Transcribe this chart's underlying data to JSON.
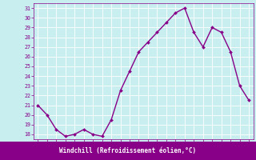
{
  "x": [
    0,
    1,
    2,
    3,
    4,
    5,
    6,
    7,
    8,
    9,
    10,
    11,
    12,
    13,
    14,
    15,
    16,
    17,
    18,
    19,
    20,
    21,
    22,
    23
  ],
  "y": [
    21,
    20,
    18.5,
    17.8,
    18,
    18.5,
    18,
    17.8,
    19.5,
    22.5,
    24.5,
    26.5,
    27.5,
    28.5,
    29.5,
    30.5,
    31,
    28.5,
    27,
    29,
    28.5,
    26.5,
    23,
    21.5
  ],
  "xlabel": "Windchill (Refroidissement éolien,°C)",
  "xlim": [
    -0.5,
    23.5
  ],
  "ylim": [
    17.5,
    31.5
  ],
  "yticks": [
    18,
    19,
    20,
    21,
    22,
    23,
    24,
    25,
    26,
    27,
    28,
    29,
    30,
    31
  ],
  "xticks": [
    0,
    1,
    2,
    3,
    4,
    5,
    6,
    7,
    8,
    9,
    10,
    11,
    12,
    13,
    14,
    15,
    16,
    17,
    18,
    19,
    20,
    21,
    22,
    23
  ],
  "line_color": "#880088",
  "marker": "D",
  "marker_size": 2.0,
  "bg_color": "#c8eef0",
  "grid_color": "#ffffff",
  "tick_label_color": "#880088",
  "bottom_bar_color": "#880088",
  "bottom_bar_text_color": "#ffffff",
  "line_width": 1.0,
  "tick_fontsize": 4.8,
  "xlabel_fontsize": 5.5
}
